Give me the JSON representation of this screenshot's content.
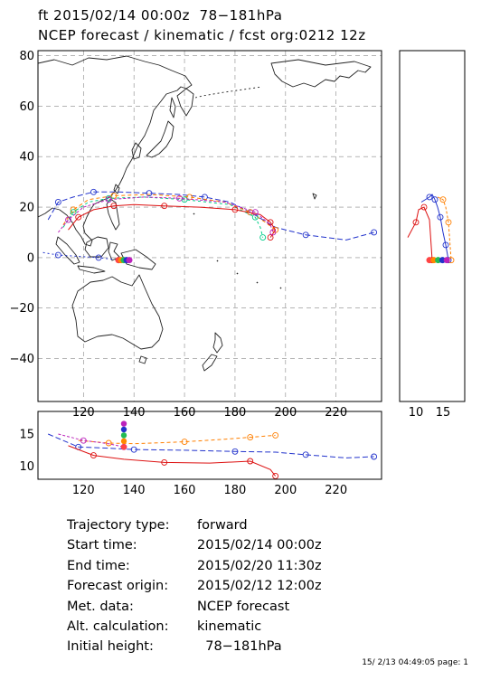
{
  "title": {
    "line1": "ft 2015/02/14 00:00z  78−181hPa",
    "line2": "NCEP forecast / kinematic / fcst org:0212 12z"
  },
  "chart_data": [
    {
      "type": "line",
      "panel": "map",
      "x_ticks": [
        "120",
        "140",
        "160",
        "180",
        "200",
        "220"
      ],
      "y_ticks": [
        "80",
        "60",
        "40",
        "20",
        "0",
        "−20",
        "−40"
      ],
      "xlim": [
        102,
        238
      ],
      "ylim": [
        -57,
        82
      ],
      "grid": true,
      "series": [
        {
          "color": "#2233cc",
          "x": [
            106,
            110,
            116,
            124,
            134,
            146,
            158,
            168,
            178,
            186,
            196,
            208,
            224,
            235
          ],
          "y": [
            15,
            22,
            24,
            26,
            26,
            25.5,
            25,
            24,
            22,
            18,
            12,
            9,
            7,
            10
          ]
        },
        {
          "color": "#ff7f00",
          "x": [
            112,
            116,
            122,
            132,
            146,
            162,
            176,
            186,
            192,
            196
          ],
          "y": [
            13,
            19,
            23,
            24.5,
            25,
            24,
            22,
            18,
            14,
            11
          ]
        },
        {
          "color": "#00cc88",
          "x": [
            112,
            116,
            122,
            130,
            144,
            160,
            178,
            188,
            190,
            191
          ],
          "y": [
            12,
            18,
            22,
            23.5,
            24,
            23,
            21,
            16,
            12,
            8
          ]
        },
        {
          "color": "#dd1111",
          "x": [
            114,
            118,
            124,
            132,
            140,
            152,
            166,
            180,
            190,
            194,
            196,
            194
          ],
          "y": [
            11,
            16,
            19,
            20.5,
            21,
            20.5,
            20,
            19,
            17,
            14,
            11,
            8
          ]
        },
        {
          "color": "#bb22bb",
          "x": [
            110,
            114,
            120,
            130,
            144,
            158,
            176,
            188,
            194,
            195
          ],
          "y": [
            10,
            15,
            20,
            23,
            24,
            23.5,
            22,
            18,
            13,
            10
          ]
        },
        {
          "color": "#2233cc",
          "x": [
            104,
            110,
            118,
            126,
            134
          ],
          "y": [
            2,
            1,
            0.5,
            0,
            -1
          ]
        }
      ],
      "start_marker": {
        "x": 136,
        "y": -1
      }
    },
    {
      "type": "line",
      "panel": "latitude-side",
      "x_ticks": [
        "10",
        "15"
      ],
      "xlim": [
        7,
        19
      ],
      "ylim": [
        -57,
        82
      ],
      "series": [
        {
          "color": "#2233cc",
          "x": [
            11,
            12.5,
            13,
            13.5,
            14,
            14.5,
            15,
            15.5,
            16
          ],
          "y": [
            22,
            24,
            25,
            23,
            20,
            16,
            10,
            5,
            -1
          ]
        },
        {
          "color": "#dd1111",
          "x": [
            8.5,
            10,
            10.5,
            11.5,
            12.5,
            13
          ],
          "y": [
            8,
            14,
            19,
            20,
            15,
            -1
          ]
        },
        {
          "color": "#ff7f00",
          "x": [
            14,
            15,
            15.5,
            16,
            16.5
          ],
          "y": [
            24,
            23,
            20,
            14,
            -1
          ]
        }
      ]
    },
    {
      "type": "line",
      "panel": "height-bottom",
      "x_ticks": [
        "120",
        "140",
        "160",
        "180",
        "200",
        "220"
      ],
      "y_ticks": [
        "15",
        "10"
      ],
      "xlim": [
        102,
        238
      ],
      "ylim": [
        8,
        18.5
      ],
      "series": [
        {
          "color": "#2233cc",
          "x": [
            106,
            118,
            130,
            140,
            160,
            180,
            196,
            208,
            224,
            235
          ],
          "y": [
            15,
            13,
            12.8,
            12.6,
            12.5,
            12.3,
            12.2,
            11.8,
            11.3,
            11.5
          ]
        },
        {
          "color": "#ff7f00",
          "x": [
            118,
            130,
            140,
            160,
            176,
            186,
            196
          ],
          "y": [
            14,
            13.6,
            13.5,
            13.8,
            14.2,
            14.5,
            14.8
          ]
        },
        {
          "color": "#dd1111",
          "x": [
            114,
            124,
            136,
            152,
            170,
            186,
            194,
            196
          ],
          "y": [
            13.2,
            11.7,
            11.1,
            10.6,
            10.5,
            10.8,
            9.5,
            8.5
          ]
        },
        {
          "color": "#bb22bb",
          "x": [
            110,
            120,
            130,
            136
          ],
          "y": [
            15,
            14,
            13.5,
            13
          ]
        }
      ]
    }
  ],
  "info": {
    "trajectory_type": {
      "label": "Trajectory type:",
      "value": "forward"
    },
    "start_time": {
      "label": "Start time:",
      "value": "2015/02/14 00:00z"
    },
    "end_time": {
      "label": "End time:",
      "value": "2015/02/20 11:30z"
    },
    "forecast_origin": {
      "label": "Forecast origin:",
      "value": "2015/02/12 12:00z"
    },
    "met_data": {
      "label": "Met. data:",
      "value": "NCEP forecast"
    },
    "alt_calculation": {
      "label": "Alt. calculation:",
      "value": "kinematic"
    },
    "initial_height": {
      "label": "Initial height:",
      "value": "  78−181hPa"
    }
  },
  "footer": "15/ 2/13 04:49:05 page: 1"
}
